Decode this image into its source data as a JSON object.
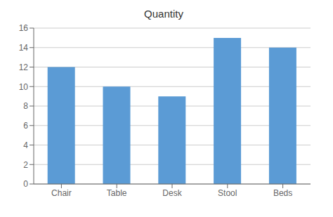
{
  "chart_data": {
    "type": "bar",
    "title": "Quantity",
    "categories": [
      "Chair",
      "Table",
      "Desk",
      "Stool",
      "Beds"
    ],
    "values": [
      12,
      10,
      9,
      15,
      14
    ],
    "color": "#5B9BD5",
    "ylim": [
      0,
      16
    ],
    "yticks": [
      0,
      2,
      4,
      6,
      8,
      10,
      12,
      14,
      16
    ],
    "grid": true
  }
}
